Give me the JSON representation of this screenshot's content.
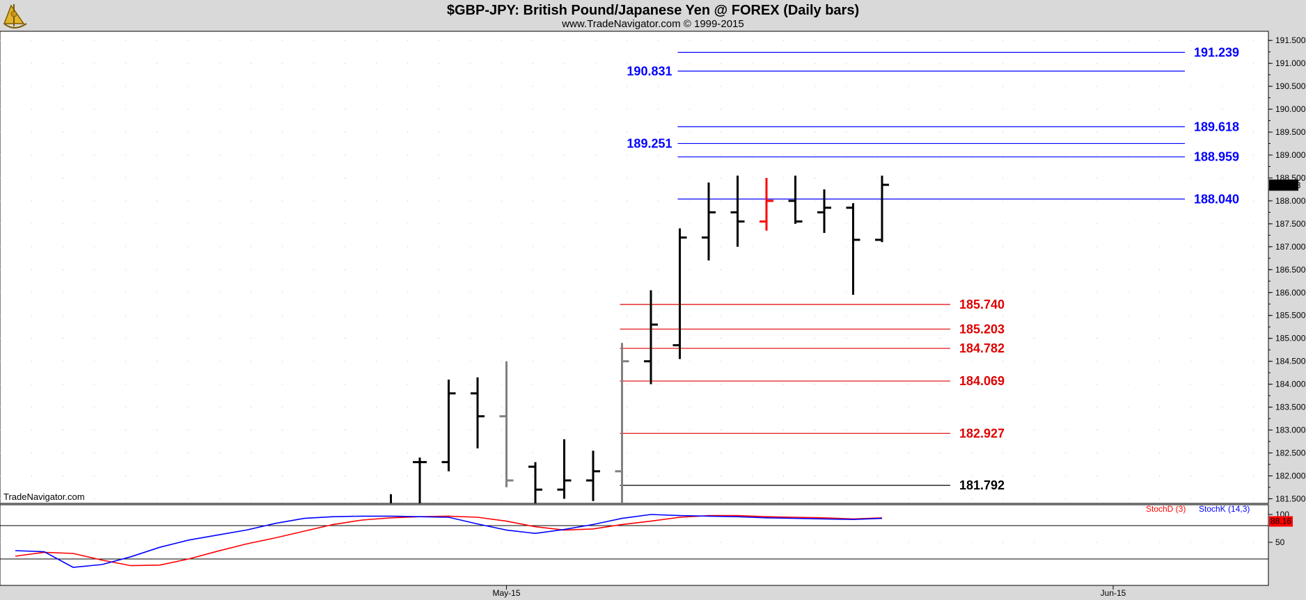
{
  "header": {
    "title": "$GBP-JPY:  British Pound/Japanese Yen @ FOREX  (Daily bars)",
    "subtitle": "www.TradeNavigator.com © 1999-2015",
    "watermark": "TradeNavigator.com",
    "logo_icon": "sextant-logo-icon"
  },
  "colors": {
    "background": "#ffffff",
    "frame": "#d9d9d9",
    "bar_black": "#000000",
    "bar_gray": "#808080",
    "bar_red": "#ff0000",
    "level_blue": "#0000ff",
    "level_red": "#e00000",
    "level_black": "#000000",
    "stoch_d": "#ff0000",
    "stoch_k": "#0000ff"
  },
  "chart_data": [
    {
      "type": "ohlc",
      "ylim": [
        181.4,
        191.7
      ],
      "y_ticks": [
        "181.500",
        "182.000",
        "182.500",
        "183.000",
        "183.500",
        "184.000",
        "184.500",
        "185.000",
        "185.500",
        "186.000",
        "186.500",
        "187.000",
        "187.500",
        "188.000",
        "188.500",
        "189.000",
        "189.500",
        "190.000",
        "190.500",
        "191.000",
        "191.500"
      ],
      "x_labels": [
        {
          "label": "May-15",
          "index": 17
        },
        {
          "label": "Jun-15",
          "index": 38
        }
      ],
      "last_price": "188.343",
      "bars": [
        {
          "i": 13,
          "o": null,
          "h": 181.6,
          "l": 181.4,
          "c": null,
          "color": "black"
        },
        {
          "i": 14,
          "o": 182.3,
          "h": 182.4,
          "l": 181.4,
          "c": 182.3,
          "color": "black"
        },
        {
          "i": 15,
          "o": 182.3,
          "h": 184.1,
          "l": 182.1,
          "c": 183.8,
          "color": "black"
        },
        {
          "i": 16,
          "o": 183.8,
          "h": 184.15,
          "l": 182.6,
          "c": 183.3,
          "color": "black"
        },
        {
          "i": 17,
          "o": 183.3,
          "h": 184.5,
          "l": 181.75,
          "c": 181.9,
          "color": "gray"
        },
        {
          "i": 18,
          "o": 182.2,
          "h": 182.3,
          "l": 181.4,
          "c": 181.7,
          "color": "black"
        },
        {
          "i": 19,
          "o": 181.7,
          "h": 182.8,
          "l": 181.5,
          "c": 181.9,
          "color": "black"
        },
        {
          "i": 20,
          "o": 181.9,
          "h": 182.55,
          "l": 181.45,
          "c": 182.1,
          "color": "black"
        },
        {
          "i": 21,
          "o": 182.1,
          "h": 184.9,
          "l": 181.4,
          "c": 184.5,
          "color": "gray"
        },
        {
          "i": 22,
          "o": 184.5,
          "h": 186.05,
          "l": 184.0,
          "c": 185.3,
          "color": "black"
        },
        {
          "i": 23,
          "o": 184.85,
          "h": 187.4,
          "l": 184.55,
          "c": 187.2,
          "color": "black"
        },
        {
          "i": 24,
          "o": 187.2,
          "h": 188.4,
          "l": 186.7,
          "c": 187.75,
          "color": "black"
        },
        {
          "i": 25,
          "o": 187.75,
          "h": 188.55,
          "l": 187.0,
          "c": 187.55,
          "color": "black"
        },
        {
          "i": 26,
          "o": 187.55,
          "h": 188.5,
          "l": 187.35,
          "c": 188.0,
          "color": "red"
        },
        {
          "i": 27,
          "o": 188.0,
          "h": 188.55,
          "l": 187.5,
          "c": 187.55,
          "color": "black"
        },
        {
          "i": 28,
          "o": 187.75,
          "h": 188.25,
          "l": 187.3,
          "c": 187.85,
          "color": "black"
        },
        {
          "i": 29,
          "o": 187.85,
          "h": 187.95,
          "l": 185.95,
          "c": 187.15,
          "color": "black"
        },
        {
          "i": 30,
          "o": 187.15,
          "h": 188.55,
          "l": 187.1,
          "c": 188.35,
          "color": "black"
        }
      ],
      "levels": [
        {
          "value": 191.239,
          "label": "191.239",
          "color": "blue",
          "label_side": "right",
          "x_from": 23,
          "x_to": 40
        },
        {
          "value": 190.831,
          "label": "190.831",
          "color": "blue",
          "label_side": "left",
          "x_from": 23,
          "x_to": 40
        },
        {
          "value": 189.618,
          "label": "189.618",
          "color": "blue",
          "label_side": "right",
          "x_from": 23,
          "x_to": 40
        },
        {
          "value": 189.251,
          "label": "189.251",
          "color": "blue",
          "label_side": "left",
          "x_from": 23,
          "x_to": 40
        },
        {
          "value": 188.959,
          "label": "188.959",
          "color": "blue",
          "label_side": "right",
          "x_from": 23,
          "x_to": 40
        },
        {
          "value": 188.04,
          "label": "188.040",
          "color": "blue",
          "label_side": "right",
          "x_from": 23,
          "x_to": 40
        },
        {
          "value": 185.74,
          "label": "185.740",
          "color": "red",
          "label_side": "right",
          "x_from": 21,
          "x_to": 32
        },
        {
          "value": 185.203,
          "label": "185.203",
          "color": "red",
          "label_side": "right",
          "x_from": 21,
          "x_to": 32
        },
        {
          "value": 184.782,
          "label": "184.782",
          "color": "red",
          "label_side": "right",
          "x_from": 21,
          "x_to": 32
        },
        {
          "value": 184.069,
          "label": "184.069",
          "color": "red",
          "label_side": "right",
          "x_from": 21,
          "x_to": 32
        },
        {
          "value": 182.927,
          "label": "182.927",
          "color": "red",
          "label_side": "right",
          "x_from": 21,
          "x_to": 32
        },
        {
          "value": 181.792,
          "label": "181.792",
          "color": "black",
          "label_side": "right",
          "x_from": 21,
          "x_to": 32
        }
      ]
    },
    {
      "type": "line",
      "ylim": [
        0,
        100
      ],
      "y_ticks": [
        "100",
        "50"
      ],
      "reference_lines": [
        20,
        80
      ],
      "legend": [
        "StochD (3)",
        "StochK (14,3)"
      ],
      "last_value": "88.16",
      "series": [
        {
          "name": "StochD (3)",
          "color": "red",
          "x": [
            0,
            1,
            2,
            3,
            4,
            5,
            6,
            7,
            8,
            9,
            10,
            11,
            12,
            13,
            14,
            15,
            16,
            17,
            18,
            19,
            20,
            21,
            22,
            23,
            24,
            25,
            26,
            27,
            28,
            29,
            30
          ],
          "values": [
            25,
            32,
            30,
            18,
            8,
            9,
            20,
            34,
            47,
            58,
            70,
            82,
            90,
            94,
            96,
            97,
            95,
            88,
            78,
            72,
            74,
            82,
            88,
            95,
            98,
            98,
            96,
            95,
            94,
            92,
            94
          ]
        },
        {
          "name": "StochK (14,3)",
          "color": "blue",
          "x": [
            0,
            1,
            2,
            3,
            4,
            5,
            6,
            7,
            8,
            9,
            10,
            11,
            12,
            13,
            14,
            15,
            16,
            17,
            18,
            19,
            20,
            21,
            22,
            23,
            24,
            25,
            26,
            27,
            28,
            29,
            30
          ],
          "values": [
            35,
            33,
            5,
            10,
            24,
            41,
            54,
            63,
            72,
            84,
            93,
            96,
            97,
            97,
            96,
            95,
            83,
            72,
            66,
            73,
            82,
            93,
            100,
            98,
            97,
            96,
            94,
            93,
            92,
            91,
            93
          ]
        }
      ]
    }
  ]
}
